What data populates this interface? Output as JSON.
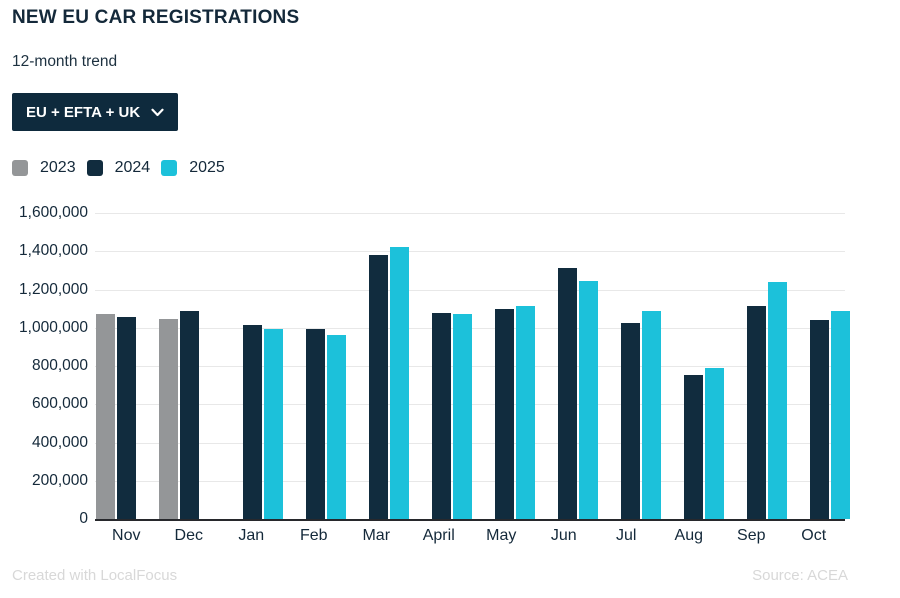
{
  "header": {
    "title": "NEW EU CAR REGISTRATIONS",
    "subtitle": "12-month trend",
    "filter_dropdown": {
      "label": "EU + EFTA + UK",
      "icon": "chevron-down-icon"
    }
  },
  "chart_data": {
    "type": "bar",
    "title": "NEW EU CAR REGISTRATIONS",
    "subtitle": "12-month trend",
    "categories": [
      "Nov",
      "Dec",
      "Jan",
      "Feb",
      "Mar",
      "April",
      "May",
      "Jun",
      "Jul",
      "Aug",
      "Sep",
      "Oct"
    ],
    "series": [
      {
        "name": "2023",
        "color": "#949698",
        "values": [
          1074000,
          1047000,
          null,
          null,
          null,
          null,
          null,
          null,
          null,
          null,
          null,
          null
        ]
      },
      {
        "name": "2024",
        "color": "#112c3e",
        "values": [
          1054000,
          1089000,
          1015000,
          995000,
          1383000,
          1079000,
          1096000,
          1313000,
          1023000,
          755000,
          1116000,
          1040000
        ]
      },
      {
        "name": "2025",
        "color": "#1cc1da",
        "values": [
          null,
          null,
          995000,
          962000,
          1424000,
          1071000,
          1116000,
          1244000,
          1088000,
          792000,
          1238000,
          1089000
        ]
      }
    ],
    "ylim": [
      0,
      1600000
    ],
    "ytick_step": 200000,
    "ytick_labels": [
      "1,600,000",
      "1,400,000",
      "1,200,000",
      "1,000,000",
      "800,000",
      "600,000",
      "400,000",
      "200,000",
      "0"
    ],
    "grid": true,
    "legend_position": "top-left"
  },
  "footer": {
    "credit": "Created with LocalFocus",
    "source": "Source:  ACEA"
  }
}
